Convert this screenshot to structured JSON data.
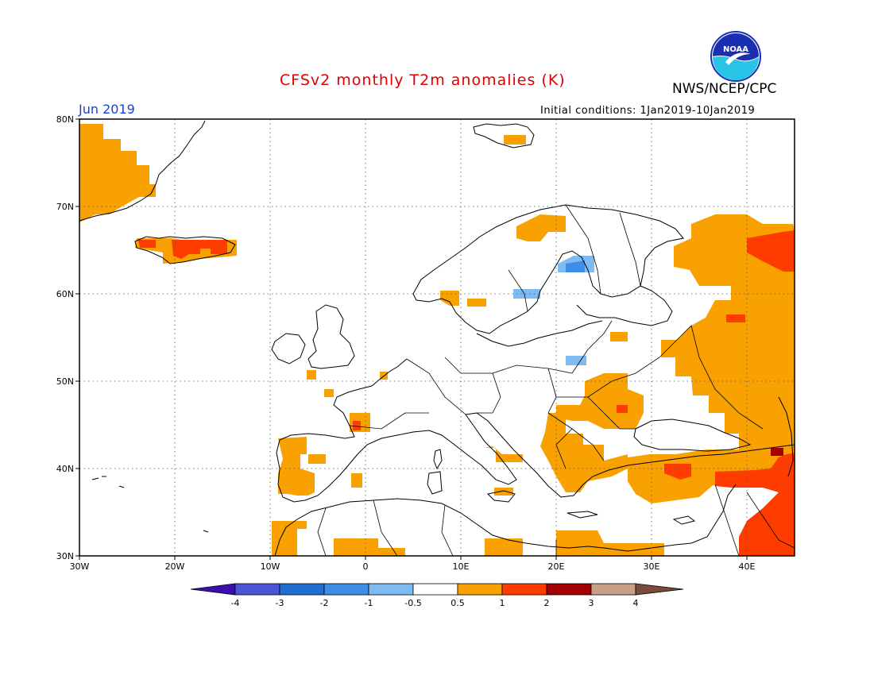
{
  "title": "CFSv2 monthly T2m anomalies (K)",
  "agency": "NWS/NCEP/CPC",
  "logo_text": "NOAA",
  "period": "Jun 2019",
  "init_conditions": "Initial conditions: 1Jan2019-10Jan2019",
  "map": {
    "lon_range": [
      -30,
      45
    ],
    "lat_range": [
      30,
      80
    ],
    "lat_ticks": [
      {
        "value": 80,
        "label": "80N"
      },
      {
        "value": 70,
        "label": "70N"
      },
      {
        "value": 60,
        "label": "60N"
      },
      {
        "value": 50,
        "label": "50N"
      },
      {
        "value": 40,
        "label": "40N"
      },
      {
        "value": 30,
        "label": "30N"
      }
    ],
    "lon_ticks": [
      {
        "value": -30,
        "label": "30W"
      },
      {
        "value": -20,
        "label": "20W"
      },
      {
        "value": -10,
        "label": "10W"
      },
      {
        "value": 0,
        "label": "0"
      },
      {
        "value": 10,
        "label": "10E"
      },
      {
        "value": 20,
        "label": "20E"
      },
      {
        "value": 30,
        "label": "30E"
      },
      {
        "value": 40,
        "label": "40E"
      }
    ],
    "grid_style": "dotted",
    "colors": {
      "warm_0_5_1": "#f9a100",
      "warm_1_2": "#ff3c00",
      "warm_2_3": "#a50000",
      "cool_m1_m0_5": "#7ebbf2",
      "cool_m2_m1": "#3e8ee8",
      "coastline": "#000000"
    },
    "anomaly_regions": [
      {
        "name": "Greenland",
        "level": "0.5-1",
        "lon": [
          -30,
          -23
        ],
        "lat": [
          70,
          80
        ]
      },
      {
        "name": "Iceland",
        "level": "1-2",
        "lon": [
          -24,
          -14
        ],
        "lat": [
          63.3,
          66.5
        ]
      },
      {
        "name": "Northern Scandinavia",
        "level": "0.5-1",
        "lon": [
          14,
          22
        ],
        "lat": [
          64,
          69
        ]
      },
      {
        "name": "Sweden (Bothnia)",
        "level": "-1 to -0.5",
        "lon": [
          21,
          24
        ],
        "lat": [
          62.7,
          64
        ]
      },
      {
        "name": "Southern Sweden",
        "level": "-1 to -0.5",
        "lon": [
          16,
          18.5
        ],
        "lat": [
          59.5,
          60.3
        ]
      },
      {
        "name": "Poland / Belarus",
        "level": "-1 to -0.5",
        "lon": [
          21,
          23.5
        ],
        "lat": [
          51.8,
          52.5
        ]
      },
      {
        "name": "Western Russia",
        "level": "0.5-1",
        "lon": [
          32,
          45
        ],
        "lat": [
          42,
          68
        ]
      },
      {
        "name": "Arkhangelsk",
        "level": "1-2",
        "lon": [
          40,
          45
        ],
        "lat": [
          62,
          67
        ]
      },
      {
        "name": "Romania / Ukraine",
        "level": "0.5-1",
        "lon": [
          23,
          30
        ],
        "lat": [
          43.5,
          49
        ]
      },
      {
        "name": "Balkans / Greece",
        "level": "0.5-1",
        "lon": [
          19,
          27
        ],
        "lat": [
          36,
          46
        ]
      },
      {
        "name": "Turkey",
        "level": "0.5-1",
        "lon": [
          26,
          41
        ],
        "lat": [
          36,
          42
        ]
      },
      {
        "name": "Middle East",
        "level": "1-2",
        "lon": [
          37,
          45
        ],
        "lat": [
          30,
          40
        ]
      },
      {
        "name": "Caucasus",
        "level": "2-3",
        "lon": [
          42,
          43.5
        ],
        "lat": [
          40.8,
          41.8
        ]
      },
      {
        "name": "Iberian coast",
        "level": "0.5-1",
        "lon": [
          -9.5,
          -7
        ],
        "lat": [
          30,
          43
        ]
      },
      {
        "name": "Bay of Biscay",
        "level": "1-2",
        "lon": [
          -1.3,
          -0.3
        ],
        "lat": [
          44.3,
          45.8
        ]
      },
      {
        "name": "North Africa",
        "level": "0.5-1",
        "lon": [
          -3,
          4
        ],
        "lat": [
          30,
          31.5
        ]
      },
      {
        "name": "Libya / Egypt coast",
        "level": "0.5-1",
        "lon": [
          13,
          31
        ],
        "lat": [
          30,
          32
        ]
      }
    ]
  },
  "colorbar": {
    "ticks": [
      "-4",
      "-3",
      "-2",
      "-1",
      "-0.5",
      "0.5",
      "1",
      "2",
      "3",
      "4"
    ],
    "colors": [
      "#3a0fb2",
      "#4b55d6",
      "#1e6ed6",
      "#3e8ee8",
      "#7ebbf2",
      "#ffffff",
      "#f9a100",
      "#ff3c00",
      "#a50000",
      "#c8a08a",
      "#7a4a3a"
    ]
  }
}
